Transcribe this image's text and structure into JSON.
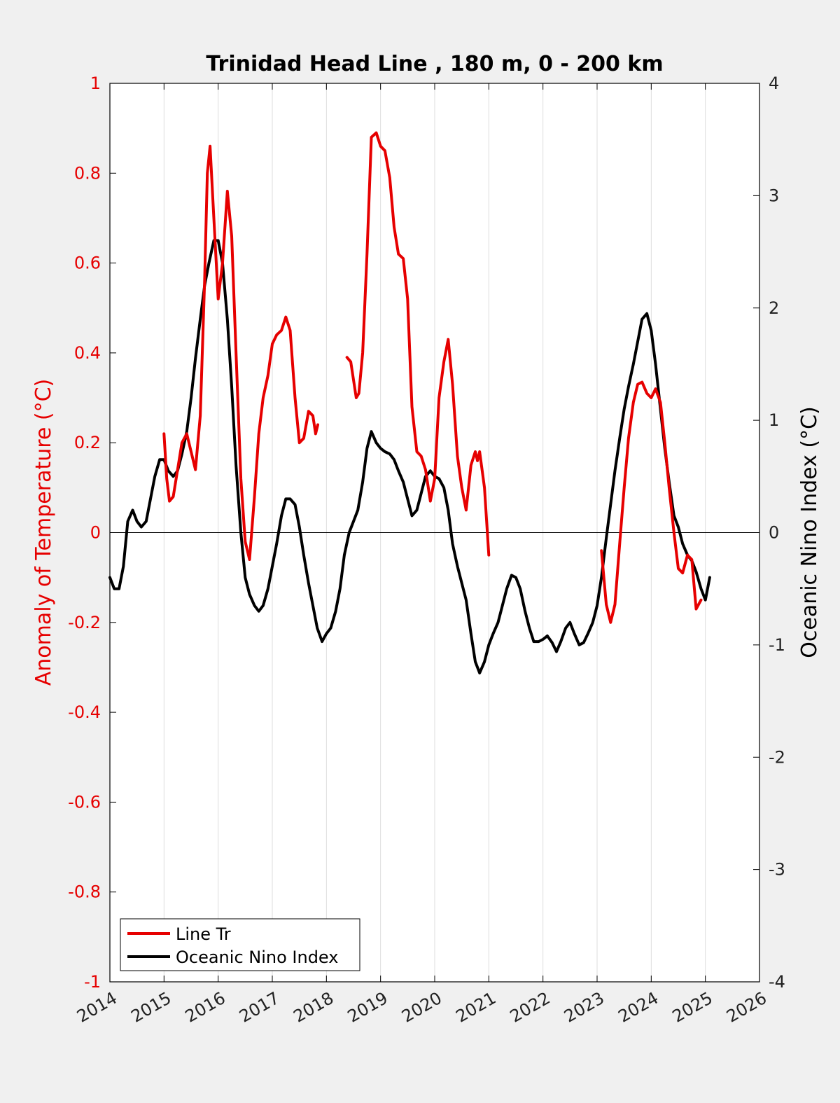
{
  "chart_data": {
    "type": "line",
    "title": "Trinidad Head Line , 180 m, 0 - 200 km",
    "xlabel": "",
    "ylabel_left": "Anomaly of Temperature (°C)",
    "ylabel_right": "Oceanic Nino Index (°C)",
    "xlim": [
      2014,
      2026
    ],
    "ylim_left": [
      -1,
      1
    ],
    "ylim_right": [
      -4,
      4
    ],
    "x_ticks": [
      "2014",
      "2015",
      "2016",
      "2017",
      "2018",
      "2019",
      "2020",
      "2021",
      "2022",
      "2023",
      "2024",
      "2025",
      "2026"
    ],
    "y_ticks_left": [
      "1",
      "0.8",
      "0.6",
      "0.4",
      "0.2",
      "0",
      "-0.2",
      "-0.4",
      "-0.6",
      "-0.8",
      "-1"
    ],
    "y_ticks_right": [
      "4",
      "3",
      "2",
      "1",
      "0",
      "-1",
      "-2",
      "-3",
      "-4"
    ],
    "grid": "vertical",
    "legend_position": "bottom-left",
    "colors": {
      "anomaly": "#e60000",
      "oni": "#000000",
      "background": "#f0f0f0",
      "axes": "#ffffff",
      "grid": "#dddddd"
    },
    "series": [
      {
        "name": "Line Tr",
        "axis": "left",
        "segments": [
          [
            [
              2015.0,
              0.22
            ],
            [
              2015.05,
              0.12
            ],
            [
              2015.1,
              0.07
            ],
            [
              2015.17,
              0.08
            ],
            [
              2015.25,
              0.14
            ],
            [
              2015.33,
              0.2
            ],
            [
              2015.42,
              0.22
            ],
            [
              2015.5,
              0.18
            ],
            [
              2015.58,
              0.14
            ],
            [
              2015.67,
              0.26
            ],
            [
              2015.75,
              0.56
            ],
            [
              2015.8,
              0.8
            ],
            [
              2015.85,
              0.86
            ],
            [
              2015.92,
              0.7
            ],
            [
              2016.0,
              0.52
            ],
            [
              2016.08,
              0.6
            ],
            [
              2016.17,
              0.76
            ],
            [
              2016.25,
              0.66
            ],
            [
              2016.33,
              0.4
            ],
            [
              2016.42,
              0.12
            ],
            [
              2016.5,
              -0.02
            ],
            [
              2016.58,
              -0.06
            ],
            [
              2016.67,
              0.08
            ],
            [
              2016.75,
              0.22
            ],
            [
              2016.83,
              0.3
            ],
            [
              2016.92,
              0.35
            ],
            [
              2017.0,
              0.42
            ],
            [
              2017.08,
              0.44
            ],
            [
              2017.17,
              0.45
            ],
            [
              2017.25,
              0.48
            ],
            [
              2017.33,
              0.45
            ],
            [
              2017.42,
              0.3
            ],
            [
              2017.5,
              0.2
            ],
            [
              2017.58,
              0.21
            ],
            [
              2017.67,
              0.27
            ],
            [
              2017.75,
              0.26
            ],
            [
              2017.8,
              0.22
            ],
            [
              2017.84,
              0.24
            ]
          ],
          [
            [
              2018.38,
              0.39
            ],
            [
              2018.45,
              0.38
            ],
            [
              2018.55,
              0.3
            ],
            [
              2018.6,
              0.31
            ],
            [
              2018.67,
              0.4
            ],
            [
              2018.75,
              0.62
            ],
            [
              2018.83,
              0.88
            ],
            [
              2018.92,
              0.89
            ],
            [
              2019.0,
              0.86
            ],
            [
              2019.08,
              0.85
            ],
            [
              2019.17,
              0.79
            ],
            [
              2019.25,
              0.68
            ],
            [
              2019.33,
              0.62
            ],
            [
              2019.42,
              0.61
            ],
            [
              2019.5,
              0.52
            ],
            [
              2019.58,
              0.28
            ],
            [
              2019.67,
              0.18
            ],
            [
              2019.75,
              0.17
            ],
            [
              2019.83,
              0.14
            ],
            [
              2019.92,
              0.07
            ],
            [
              2020.0,
              0.12
            ],
            [
              2020.08,
              0.3
            ],
            [
              2020.17,
              0.38
            ],
            [
              2020.25,
              0.43
            ],
            [
              2020.33,
              0.33
            ],
            [
              2020.42,
              0.17
            ],
            [
              2020.5,
              0.1
            ],
            [
              2020.58,
              0.05
            ],
            [
              2020.67,
              0.15
            ],
            [
              2020.75,
              0.18
            ],
            [
              2020.79,
              0.16
            ],
            [
              2020.83,
              0.18
            ],
            [
              2020.92,
              0.1
            ],
            [
              2021.0,
              -0.05
            ]
          ],
          [
            [
              2023.08,
              -0.04
            ],
            [
              2023.17,
              -0.16
            ],
            [
              2023.25,
              -0.2
            ],
            [
              2023.33,
              -0.16
            ],
            [
              2023.42,
              -0.02
            ],
            [
              2023.5,
              0.1
            ],
            [
              2023.58,
              0.21
            ],
            [
              2023.67,
              0.29
            ],
            [
              2023.75,
              0.33
            ],
            [
              2023.83,
              0.335
            ],
            [
              2023.92,
              0.31
            ],
            [
              2024.0,
              0.3
            ],
            [
              2024.08,
              0.32
            ],
            [
              2024.17,
              0.29
            ],
            [
              2024.25,
              0.2
            ],
            [
              2024.33,
              0.1
            ],
            [
              2024.42,
              0.0
            ],
            [
              2024.5,
              -0.08
            ],
            [
              2024.58,
              -0.09
            ],
            [
              2024.67,
              -0.05
            ],
            [
              2024.75,
              -0.06
            ],
            [
              2024.83,
              -0.17
            ],
            [
              2024.92,
              -0.15
            ]
          ]
        ]
      },
      {
        "name": "Oceanic Nino Index",
        "axis": "right",
        "segments": [
          [
            [
              2014.0,
              -0.4
            ],
            [
              2014.08,
              -0.5
            ],
            [
              2014.17,
              -0.5
            ],
            [
              2014.25,
              -0.3
            ],
            [
              2014.33,
              0.1
            ],
            [
              2014.42,
              0.2
            ],
            [
              2014.5,
              0.1
            ],
            [
              2014.58,
              0.05
            ],
            [
              2014.67,
              0.1
            ],
            [
              2014.75,
              0.3
            ],
            [
              2014.83,
              0.5
            ],
            [
              2014.92,
              0.65
            ],
            [
              2015.0,
              0.65
            ],
            [
              2015.08,
              0.55
            ],
            [
              2015.17,
              0.5
            ],
            [
              2015.25,
              0.55
            ],
            [
              2015.33,
              0.7
            ],
            [
              2015.42,
              0.9
            ],
            [
              2015.5,
              1.2
            ],
            [
              2015.58,
              1.55
            ],
            [
              2015.67,
              1.9
            ],
            [
              2015.75,
              2.2
            ],
            [
              2015.83,
              2.4
            ],
            [
              2015.92,
              2.6
            ],
            [
              2016.0,
              2.6
            ],
            [
              2016.08,
              2.4
            ],
            [
              2016.17,
              1.9
            ],
            [
              2016.25,
              1.3
            ],
            [
              2016.33,
              0.6
            ],
            [
              2016.42,
              0.0
            ],
            [
              2016.5,
              -0.4
            ],
            [
              2016.58,
              -0.55
            ],
            [
              2016.67,
              -0.65
            ],
            [
              2016.75,
              -0.7
            ],
            [
              2016.83,
              -0.65
            ],
            [
              2016.92,
              -0.5
            ],
            [
              2017.0,
              -0.3
            ],
            [
              2017.08,
              -0.1
            ],
            [
              2017.17,
              0.15
            ],
            [
              2017.25,
              0.3
            ],
            [
              2017.33,
              0.3
            ],
            [
              2017.42,
              0.25
            ],
            [
              2017.5,
              0.05
            ],
            [
              2017.58,
              -0.2
            ],
            [
              2017.67,
              -0.45
            ],
            [
              2017.75,
              -0.65
            ],
            [
              2017.83,
              -0.85
            ],
            [
              2017.92,
              -0.97
            ],
            [
              2018.0,
              -0.9
            ],
            [
              2018.08,
              -0.85
            ],
            [
              2018.17,
              -0.7
            ],
            [
              2018.25,
              -0.5
            ],
            [
              2018.33,
              -0.2
            ],
            [
              2018.42,
              0.0
            ],
            [
              2018.5,
              0.1
            ],
            [
              2018.58,
              0.2
            ],
            [
              2018.67,
              0.45
            ],
            [
              2018.75,
              0.75
            ],
            [
              2018.83,
              0.9
            ],
            [
              2018.92,
              0.8
            ],
            [
              2019.0,
              0.75
            ],
            [
              2019.08,
              0.72
            ],
            [
              2019.17,
              0.7
            ],
            [
              2019.25,
              0.65
            ],
            [
              2019.33,
              0.55
            ],
            [
              2019.42,
              0.45
            ],
            [
              2019.5,
              0.3
            ],
            [
              2019.58,
              0.15
            ],
            [
              2019.67,
              0.2
            ],
            [
              2019.75,
              0.35
            ],
            [
              2019.83,
              0.5
            ],
            [
              2019.92,
              0.55
            ],
            [
              2020.0,
              0.5
            ],
            [
              2020.08,
              0.48
            ],
            [
              2020.17,
              0.4
            ],
            [
              2020.25,
              0.2
            ],
            [
              2020.33,
              -0.1
            ],
            [
              2020.42,
              -0.3
            ],
            [
              2020.5,
              -0.45
            ],
            [
              2020.58,
              -0.6
            ],
            [
              2020.67,
              -0.9
            ],
            [
              2020.75,
              -1.15
            ],
            [
              2020.83,
              -1.25
            ],
            [
              2020.92,
              -1.15
            ],
            [
              2021.0,
              -1.0
            ],
            [
              2021.08,
              -0.9
            ],
            [
              2021.17,
              -0.8
            ],
            [
              2021.25,
              -0.65
            ],
            [
              2021.33,
              -0.5
            ],
            [
              2021.42,
              -0.38
            ],
            [
              2021.5,
              -0.4
            ],
            [
              2021.58,
              -0.5
            ],
            [
              2021.67,
              -0.7
            ],
            [
              2021.75,
              -0.85
            ],
            [
              2021.83,
              -0.97
            ],
            [
              2021.92,
              -0.97
            ],
            [
              2022.0,
              -0.95
            ],
            [
              2022.08,
              -0.92
            ],
            [
              2022.17,
              -0.98
            ],
            [
              2022.25,
              -1.06
            ],
            [
              2022.33,
              -0.97
            ],
            [
              2022.42,
              -0.85
            ],
            [
              2022.5,
              -0.8
            ],
            [
              2022.58,
              -0.9
            ],
            [
              2022.67,
              -1.0
            ],
            [
              2022.75,
              -0.98
            ],
            [
              2022.83,
              -0.9
            ],
            [
              2022.92,
              -0.8
            ],
            [
              2023.0,
              -0.65
            ],
            [
              2023.08,
              -0.4
            ],
            [
              2023.17,
              -0.05
            ],
            [
              2023.25,
              0.25
            ],
            [
              2023.33,
              0.55
            ],
            [
              2023.42,
              0.85
            ],
            [
              2023.5,
              1.1
            ],
            [
              2023.58,
              1.3
            ],
            [
              2023.67,
              1.5
            ],
            [
              2023.75,
              1.7
            ],
            [
              2023.83,
              1.9
            ],
            [
              2023.92,
              1.95
            ],
            [
              2024.0,
              1.8
            ],
            [
              2024.08,
              1.5
            ],
            [
              2024.17,
              1.1
            ],
            [
              2024.25,
              0.75
            ],
            [
              2024.33,
              0.45
            ],
            [
              2024.42,
              0.15
            ],
            [
              2024.5,
              0.05
            ],
            [
              2024.58,
              -0.1
            ],
            [
              2024.67,
              -0.2
            ],
            [
              2024.75,
              -0.25
            ],
            [
              2024.83,
              -0.35
            ],
            [
              2024.92,
              -0.5
            ],
            [
              2025.0,
              -0.6
            ],
            [
              2025.08,
              -0.4
            ]
          ]
        ]
      }
    ]
  }
}
